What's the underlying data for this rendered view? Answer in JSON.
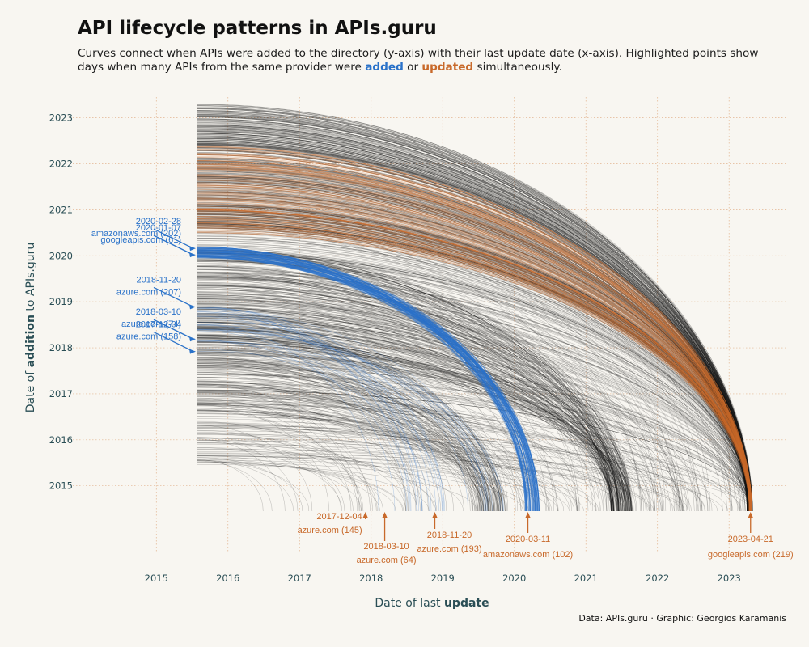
{
  "chart_data": {
    "type": "line",
    "title": "API lifecycle patterns in APIs.guru",
    "subtitle": {
      "part1": "Curves connect when APIs were added to the directory (y-axis) with their last update date (x-axis). Highlighted points show days when many APIs from the same provider were ",
      "added": "added",
      "part2": " or ",
      "updated": "updated",
      "part3": " simultaneously."
    },
    "xlabel": {
      "prefix": "Date of last ",
      "bold": "update"
    },
    "ylabel": {
      "prefix": "Date of ",
      "bold": "addition",
      "suffix": " to APIs.guru"
    },
    "caption": "Data: APIs.guru · Graphic: Georgios Karamanis",
    "xlim": [
      2014.85,
      2023.8
    ],
    "ylim": [
      2014.45,
      2023.45
    ],
    "x_ticks": [
      2015,
      2016,
      2017,
      2018,
      2019,
      2020,
      2021,
      2022,
      2023
    ],
    "y_ticks": [
      2015,
      2016,
      2017,
      2018,
      2019,
      2020,
      2021,
      2022,
      2023
    ],
    "x_tick_labels": [
      "2015",
      "2016",
      "2017",
      "2018",
      "2019",
      "2020",
      "2021",
      "2022",
      "2023"
    ],
    "y_tick_labels": [
      "2015",
      "2016",
      "2017",
      "2018",
      "2019",
      "2020",
      "2021",
      "2022",
      "2023"
    ],
    "grid": true,
    "colors": {
      "added": "#2a72c9",
      "updated": "#c8692a",
      "base": "#111111",
      "grid": "#e2b48f",
      "axis_text": "#2a4e55"
    },
    "added_annotations": [
      {
        "date": "2020-02-28",
        "provider": "amazonaws.com (202)",
        "y": 2020.16,
        "count": 202
      },
      {
        "date": "2020-01-07",
        "provider": "googleapis.com (61)",
        "y": 2020.02,
        "count": 61
      },
      {
        "date": "2018-11-20",
        "provider": "azure.com (207)",
        "y": 2018.89,
        "count": 207
      },
      {
        "date": "2018-03-10",
        "provider": "azure.com (74)",
        "y": 2018.19,
        "count": 74
      },
      {
        "date": "2017-12-04",
        "provider": "azure.com (158)",
        "y": 2017.92,
        "count": 158
      }
    ],
    "updated_annotations": [
      {
        "date": "2017-12-04",
        "provider": "azure.com (145)",
        "x": 2017.92,
        "count": 145
      },
      {
        "date": "2018-03-10",
        "provider": "azure.com (64)",
        "x": 2018.19,
        "count": 64
      },
      {
        "date": "2018-11-20",
        "provider": "azure.com (193)",
        "x": 2018.89,
        "count": 193
      },
      {
        "date": "2020-03-11",
        "provider": "amazonaws.com (102)",
        "x": 2020.19,
        "count": 102
      },
      {
        "date": "2023-04-21",
        "provider": "googleapis.com (219)",
        "x": 2023.3,
        "count": 219
      }
    ]
  }
}
